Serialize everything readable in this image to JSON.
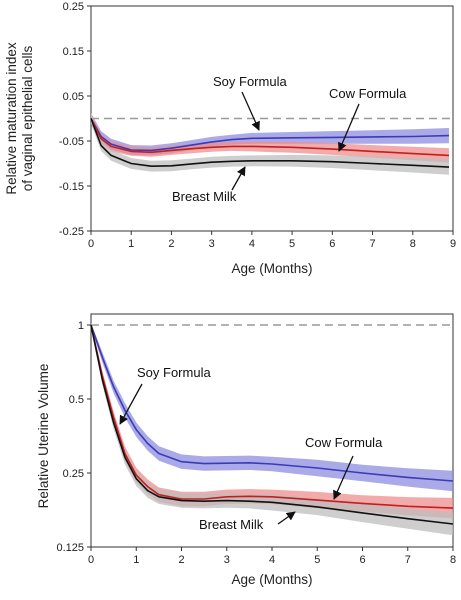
{
  "chart_data": [
    {
      "type": "line",
      "xlabel": "Age (Months)",
      "ylabel_lines": [
        "Relative maturation index",
        "of vaginal epithelial cells"
      ],
      "xlim": [
        0,
        9
      ],
      "ylim": [
        -0.25,
        0.25
      ],
      "x_ticks": [
        0,
        1,
        2,
        3,
        4,
        5,
        6,
        7,
        8,
        9
      ],
      "y_ticks": [
        -0.25,
        -0.15,
        -0.05,
        0.05,
        0.15,
        0.25
      ],
      "y_tick_labels": [
        "-0.25",
        "-0.15",
        "-0.05",
        "0.05",
        "0.15",
        "0.25"
      ],
      "reference_line": {
        "y": 0.0,
        "style": "dashed",
        "color": "#999999"
      },
      "series": [
        {
          "name": "Soy Formula",
          "color": "#3b3bb5",
          "band_color": "#8e8ee0",
          "x": [
            0,
            0.25,
            0.5,
            1,
            1.5,
            2,
            2.5,
            3,
            3.5,
            4,
            5,
            6,
            7,
            8,
            8.9
          ],
          "y": [
            0.0,
            -0.04,
            -0.057,
            -0.07,
            -0.071,
            -0.066,
            -0.059,
            -0.052,
            -0.047,
            -0.044,
            -0.043,
            -0.042,
            -0.041,
            -0.04,
            -0.038
          ],
          "band": [
            0.012,
            0.012,
            0.012,
            0.011,
            0.011,
            0.011,
            0.011,
            0.011,
            0.011,
            0.012,
            0.013,
            0.014,
            0.015,
            0.016,
            0.017
          ]
        },
        {
          "name": "Cow Formula",
          "color": "#c02020",
          "band_color": "#ee8e8e",
          "x": [
            0,
            0.25,
            0.5,
            1,
            1.5,
            2,
            2.5,
            3,
            3.5,
            4,
            5,
            6,
            7,
            8,
            8.9
          ],
          "y": [
            0.0,
            -0.045,
            -0.062,
            -0.073,
            -0.075,
            -0.071,
            -0.067,
            -0.064,
            -0.062,
            -0.062,
            -0.064,
            -0.068,
            -0.073,
            -0.078,
            -0.082
          ],
          "band": [
            0.012,
            0.011,
            0.011,
            0.01,
            0.01,
            0.01,
            0.01,
            0.01,
            0.01,
            0.011,
            0.012,
            0.013,
            0.014,
            0.015,
            0.016
          ]
        },
        {
          "name": "Breast Milk",
          "color": "#111111",
          "band_color": "#bdbdbd",
          "x": [
            0,
            0.25,
            0.5,
            1,
            1.5,
            2,
            2.5,
            3,
            3.5,
            4,
            5,
            6,
            7,
            8,
            8.9
          ],
          "y": [
            0.0,
            -0.06,
            -0.082,
            -0.1,
            -0.106,
            -0.105,
            -0.101,
            -0.097,
            -0.095,
            -0.094,
            -0.094,
            -0.096,
            -0.1,
            -0.104,
            -0.108
          ],
          "band": [
            0.012,
            0.012,
            0.012,
            0.012,
            0.012,
            0.012,
            0.012,
            0.012,
            0.012,
            0.012,
            0.013,
            0.014,
            0.015,
            0.016,
            0.017
          ]
        }
      ],
      "annotations": [
        {
          "text": "Soy Formula",
          "points_to": "Soy Formula"
        },
        {
          "text": "Cow Formula",
          "points_to": "Cow Formula"
        },
        {
          "text": "Breast Milk",
          "points_to": "Breast Milk"
        }
      ]
    },
    {
      "type": "line",
      "xlabel": "Age (Months)",
      "ylabel": "Relative Uterine Volume",
      "scale_y": "log2",
      "xlim": [
        0,
        8
      ],
      "ylim": [
        0.125,
        1
      ],
      "x_ticks": [
        0,
        1,
        2,
        3,
        4,
        5,
        6,
        7,
        8
      ],
      "y_ticks": [
        0.125,
        0.25,
        0.5,
        1
      ],
      "y_tick_labels": [
        "0.125",
        "0.25",
        "0.5",
        "1"
      ],
      "reference_line": {
        "y": 1,
        "style": "dashed",
        "color": "#999999"
      },
      "series": [
        {
          "name": "Soy Formula",
          "color": "#3b3bb5",
          "band_color": "#8e8ee0",
          "x": [
            0,
            0.25,
            0.5,
            0.75,
            1,
            1.25,
            1.5,
            2,
            2.5,
            3,
            3.5,
            4,
            5,
            6,
            7,
            8
          ],
          "y": [
            1.0,
            0.74,
            0.56,
            0.45,
            0.375,
            0.33,
            0.3,
            0.278,
            0.273,
            0.274,
            0.275,
            0.272,
            0.262,
            0.25,
            0.24,
            0.232
          ],
          "band_factor": [
            1.02,
            1.05,
            1.06,
            1.07,
            1.07,
            1.07,
            1.07,
            1.07,
            1.07,
            1.07,
            1.07,
            1.07,
            1.08,
            1.08,
            1.09,
            1.1
          ]
        },
        {
          "name": "Cow Formula",
          "color": "#c02020",
          "band_color": "#ee8e8e",
          "x": [
            0,
            0.25,
            0.5,
            0.75,
            1,
            1.25,
            1.5,
            2,
            2.5,
            3,
            3.5,
            4,
            5,
            6,
            7,
            8
          ],
          "y": [
            1.0,
            0.62,
            0.42,
            0.3,
            0.245,
            0.22,
            0.204,
            0.196,
            0.196,
            0.2,
            0.201,
            0.2,
            0.194,
            0.188,
            0.183,
            0.18
          ],
          "band_factor": [
            1.02,
            1.05,
            1.06,
            1.07,
            1.07,
            1.07,
            1.07,
            1.07,
            1.07,
            1.07,
            1.07,
            1.07,
            1.08,
            1.08,
            1.09,
            1.1
          ]
        },
        {
          "name": "Breast Milk",
          "color": "#111111",
          "band_color": "#bdbdbd",
          "x": [
            0,
            0.25,
            0.5,
            0.75,
            1,
            1.25,
            1.5,
            2,
            2.5,
            3,
            3.5,
            4,
            5,
            6,
            7,
            8
          ],
          "y": [
            1.0,
            0.6,
            0.4,
            0.29,
            0.237,
            0.212,
            0.2,
            0.193,
            0.192,
            0.193,
            0.192,
            0.19,
            0.182,
            0.172,
            0.163,
            0.155
          ],
          "band_factor": [
            1.02,
            1.05,
            1.06,
            1.07,
            1.07,
            1.07,
            1.07,
            1.07,
            1.07,
            1.07,
            1.07,
            1.08,
            1.08,
            1.09,
            1.1,
            1.11
          ]
        }
      ],
      "annotations": [
        {
          "text": "Soy Formula",
          "points_to": "Soy Formula"
        },
        {
          "text": "Cow Formula",
          "points_to": "Cow Formula"
        },
        {
          "text": "Breast Milk",
          "points_to": "Breast Milk"
        }
      ]
    }
  ]
}
